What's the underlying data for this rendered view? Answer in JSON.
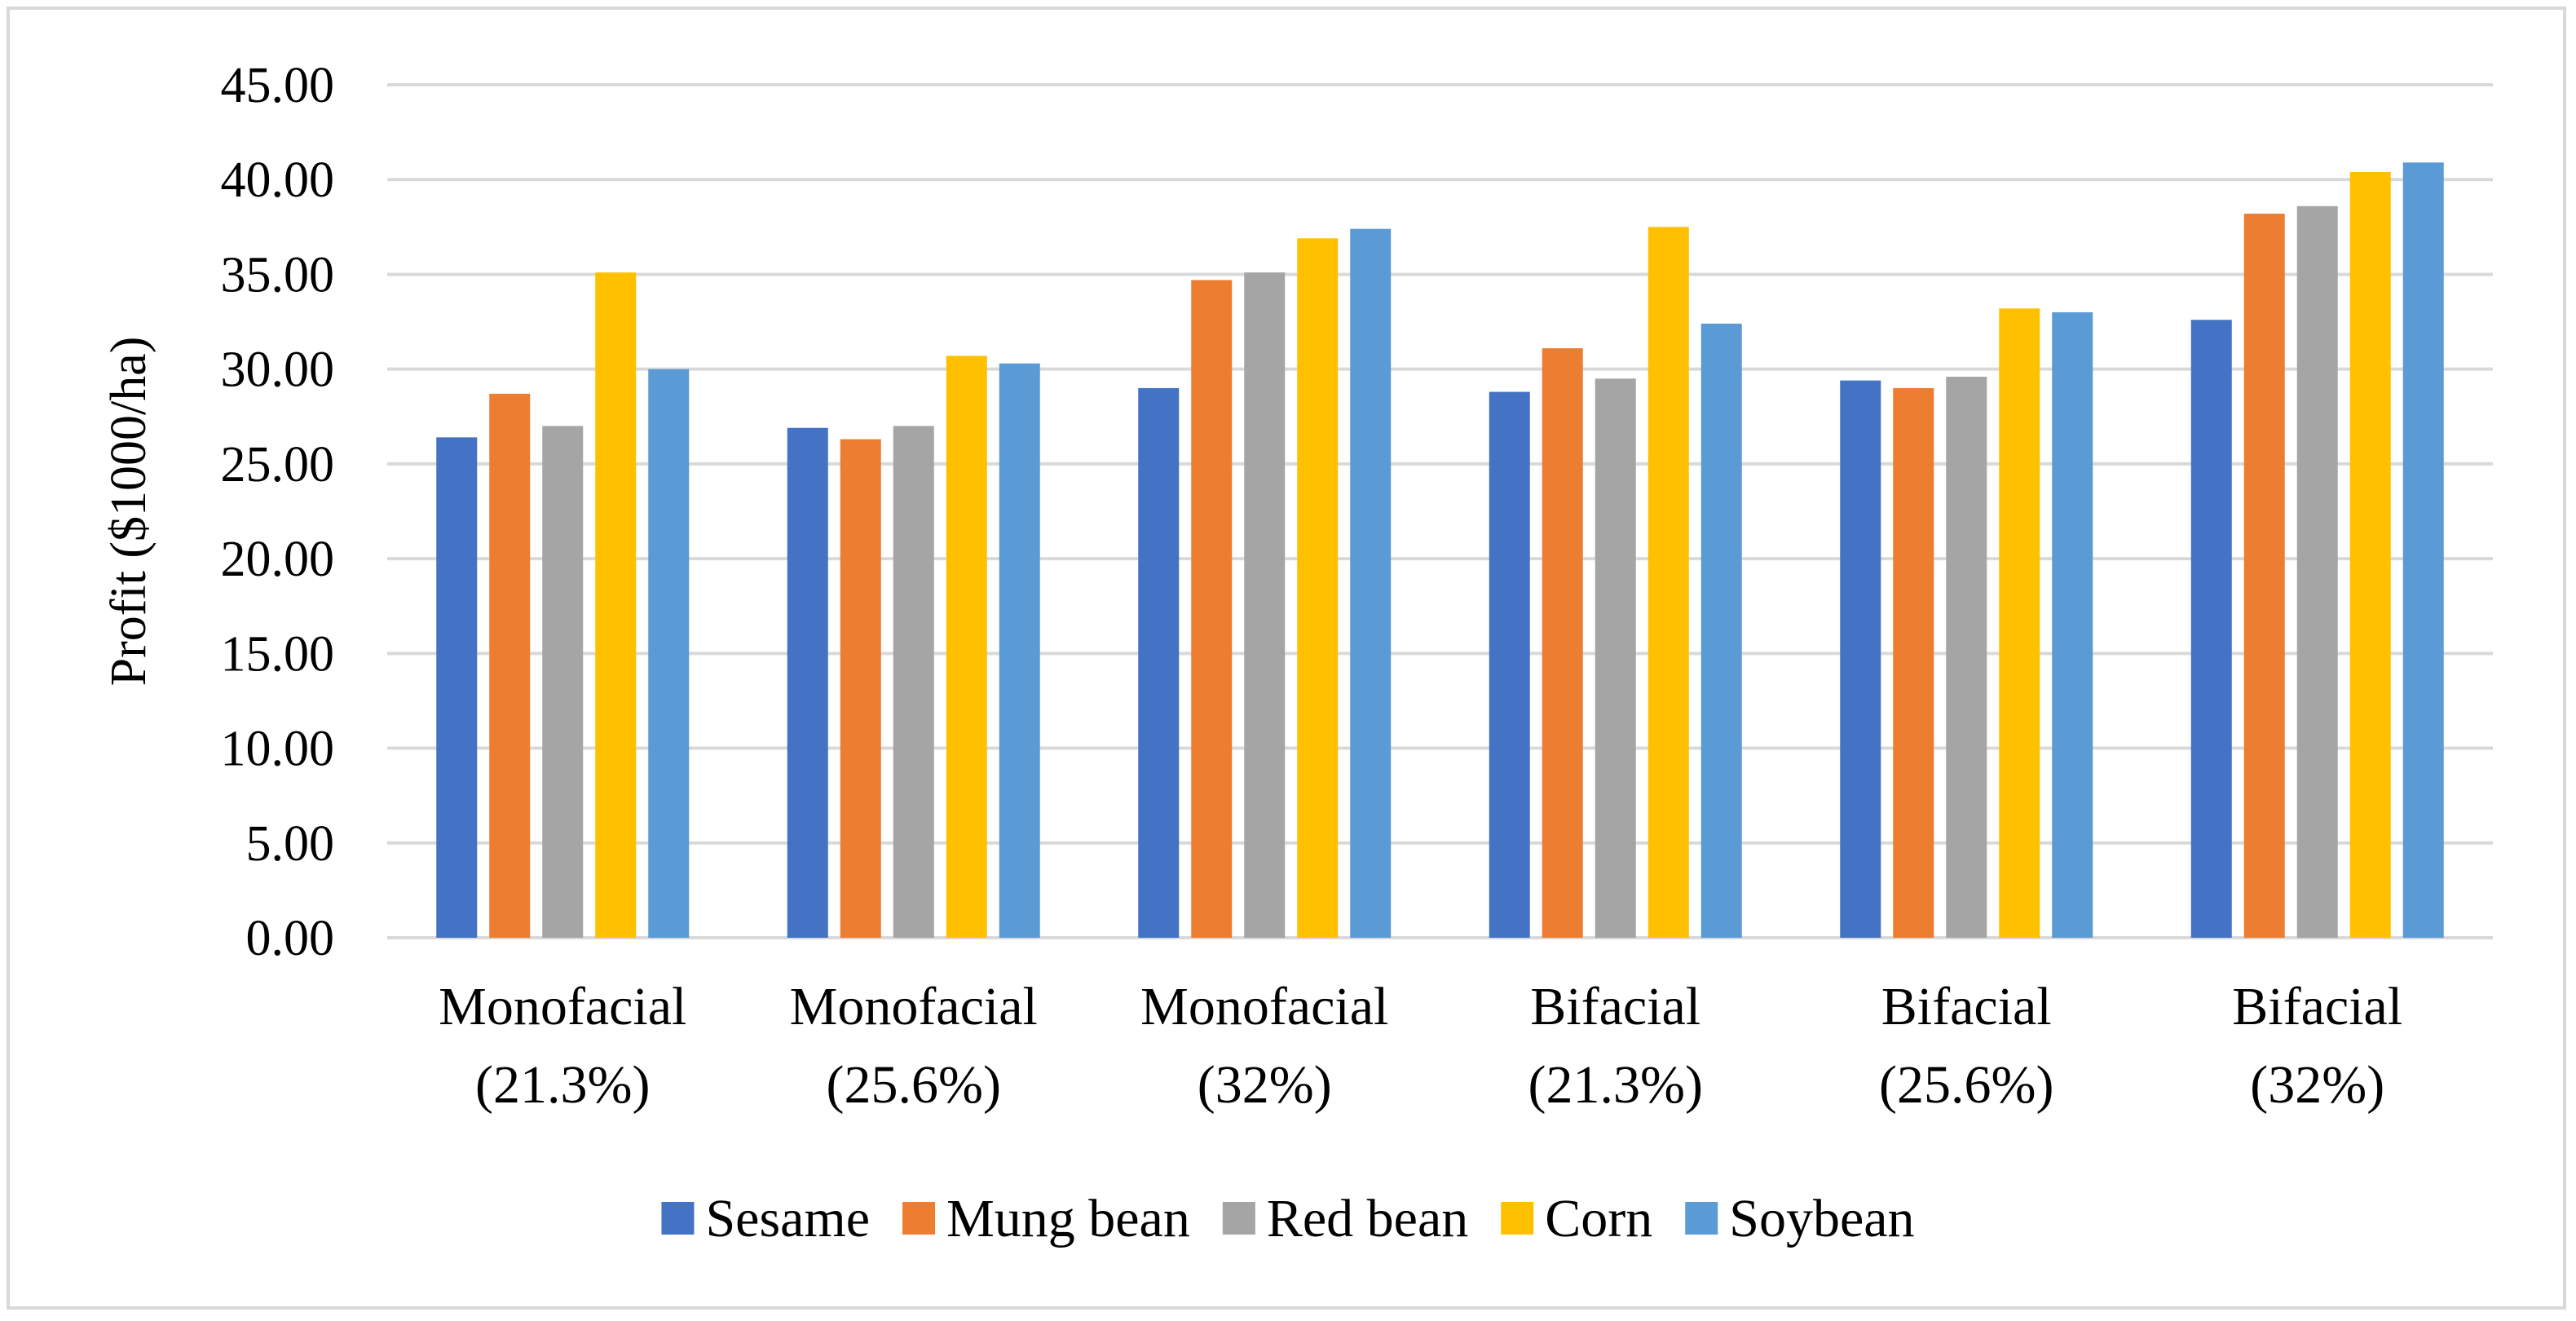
{
  "chart_data": {
    "type": "bar",
    "title": "",
    "xlabel": "",
    "ylabel": "Profit ($1000/ha)",
    "ylim": [
      0,
      45
    ],
    "ytick_step": 5,
    "ytick_decimals": 2,
    "grid": true,
    "legend_position": "bottom",
    "categories": [
      [
        "Monofacial",
        "(21.3%)"
      ],
      [
        "Monofacial",
        "(25.6%)"
      ],
      [
        "Monofacial",
        "(32%)"
      ],
      [
        "Bifacial",
        "(21.3%)"
      ],
      [
        "Bifacial",
        "(25.6%)"
      ],
      [
        "Bifacial",
        "(32%)"
      ]
    ],
    "series": [
      {
        "name": "Sesame",
        "color": "#4472c4",
        "values": [
          26.4,
          26.9,
          29.0,
          28.8,
          29.4,
          32.6
        ]
      },
      {
        "name": "Mung bean",
        "color": "#ed7d31",
        "values": [
          28.7,
          26.3,
          34.7,
          31.1,
          29.0,
          38.2
        ]
      },
      {
        "name": "Red bean",
        "color": "#a5a5a5",
        "values": [
          27.0,
          27.0,
          35.1,
          29.5,
          29.6,
          38.6
        ]
      },
      {
        "name": "Corn",
        "color": "#ffc000",
        "values": [
          35.1,
          30.7,
          36.9,
          37.5,
          33.2,
          40.4
        ]
      },
      {
        "name": "Soybean",
        "color": "#5b9bd5",
        "values": [
          30.0,
          30.3,
          37.4,
          32.4,
          33.0,
          40.9
        ]
      }
    ]
  }
}
